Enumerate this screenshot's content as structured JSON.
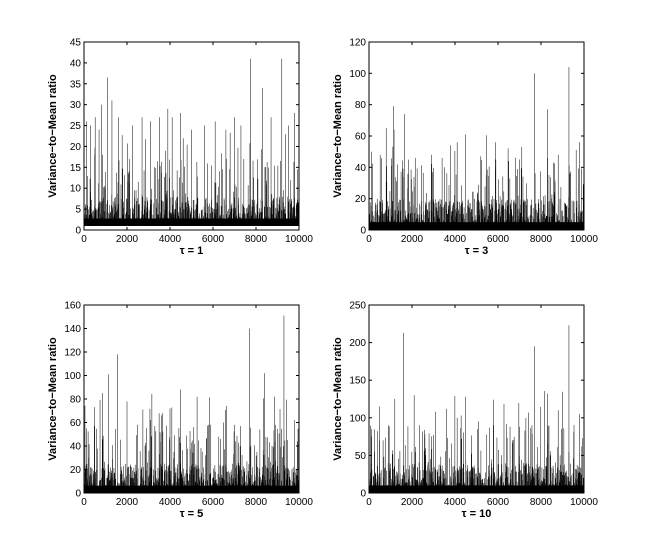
{
  "chart_data": [
    {
      "type": "line",
      "title": "",
      "xlabel": "τ = 1",
      "ylabel": "Variance−to−Mean ratio",
      "xlim": [
        0,
        10000
      ],
      "ylim": [
        0,
        45
      ],
      "xticks": [
        0,
        2000,
        4000,
        6000,
        8000,
        10000
      ],
      "yticks": [
        0,
        5,
        10,
        15,
        20,
        25,
        30,
        35,
        40,
        45
      ],
      "baseline": 1,
      "typical_range": [
        1,
        8
      ],
      "peaks": [
        [
          120,
          26
        ],
        [
          310,
          25
        ],
        [
          520,
          27
        ],
        [
          820,
          30
        ],
        [
          1100,
          36.5
        ],
        [
          1300,
          31
        ],
        [
          1600,
          27
        ],
        [
          2250,
          25
        ],
        [
          2700,
          27
        ],
        [
          3100,
          26
        ],
        [
          3500,
          27
        ],
        [
          3900,
          29
        ],
        [
          4100,
          27
        ],
        [
          4500,
          28
        ],
        [
          5000,
          24
        ],
        [
          5600,
          25
        ],
        [
          6100,
          26
        ],
        [
          6600,
          24
        ],
        [
          7000,
          27
        ],
        [
          7300,
          25
        ],
        [
          7750,
          41
        ],
        [
          8300,
          34
        ],
        [
          8700,
          27
        ],
        [
          9200,
          41
        ],
        [
          9500,
          25
        ],
        [
          9800,
          28
        ]
      ],
      "series": [
        {
          "values": []
        }
      ]
    },
    {
      "type": "line",
      "title": "",
      "xlabel": "τ = 3",
      "ylabel": "Variance−to−Mean ratio",
      "xlim": [
        0,
        10000
      ],
      "ylim": [
        0,
        120
      ],
      "xticks": [
        0,
        2000,
        4000,
        6000,
        8000,
        10000
      ],
      "yticks": [
        0,
        20,
        40,
        60,
        80,
        100,
        120
      ],
      "baseline": 0,
      "typical_range": [
        0,
        20
      ],
      "peaks": [
        [
          110,
          50
        ],
        [
          520,
          48
        ],
        [
          800,
          65
        ],
        [
          1150,
          79
        ],
        [
          1650,
          74
        ],
        [
          2150,
          46
        ],
        [
          2900,
          48
        ],
        [
          3400,
          46
        ],
        [
          3800,
          54
        ],
        [
          4100,
          56
        ],
        [
          4500,
          61
        ],
        [
          5200,
          47
        ],
        [
          5900,
          45
        ],
        [
          6500,
          44
        ],
        [
          7000,
          45
        ],
        [
          7700,
          100
        ],
        [
          8300,
          77
        ],
        [
          8800,
          48
        ],
        [
          9300,
          104
        ],
        [
          9800,
          56
        ]
      ],
      "series": [
        {
          "values": []
        }
      ]
    },
    {
      "type": "line",
      "title": "",
      "xlabel": "τ = 5",
      "ylabel": "Variance−to−Mean ratio",
      "xlim": [
        0,
        10000
      ],
      "ylim": [
        0,
        160
      ],
      "xticks": [
        0,
        2000,
        4000,
        6000,
        8000,
        10000
      ],
      "yticks": [
        0,
        20,
        40,
        60,
        80,
        100,
        120,
        140,
        160
      ],
      "baseline": 0,
      "typical_range": [
        0,
        25
      ],
      "peaks": [
        [
          120,
          55
        ],
        [
          500,
          73
        ],
        [
          850,
          85
        ],
        [
          1150,
          101
        ],
        [
          1550,
          118
        ],
        [
          2000,
          78
        ],
        [
          2500,
          58
        ],
        [
          3100,
          62
        ],
        [
          3600,
          66
        ],
        [
          4000,
          72
        ],
        [
          4500,
          88
        ],
        [
          5100,
          56
        ],
        [
          5800,
          58
        ],
        [
          6500,
          60
        ],
        [
          7000,
          58
        ],
        [
          7700,
          140
        ],
        [
          8400,
          102
        ],
        [
          8900,
          58
        ],
        [
          9300,
          151
        ],
        [
          9800,
          62
        ]
      ],
      "series": [
        {
          "values": []
        }
      ]
    },
    {
      "type": "line",
      "title": "",
      "xlabel": "τ = 10",
      "ylabel": "Variance−to−Mean ratio",
      "xlim": [
        0,
        10000
      ],
      "ylim": [
        0,
        250
      ],
      "xticks": [
        0,
        2000,
        4000,
        6000,
        8000,
        10000
      ],
      "yticks": [
        0,
        50,
        100,
        150,
        200,
        250
      ],
      "baseline": 0,
      "typical_range": [
        0,
        40
      ],
      "peaks": [
        [
          120,
          75
        ],
        [
          500,
          115
        ],
        [
          900,
          90
        ],
        [
          1200,
          125
        ],
        [
          1600,
          213
        ],
        [
          2100,
          130
        ],
        [
          2600,
          78
        ],
        [
          3100,
          108
        ],
        [
          3600,
          112
        ],
        [
          4100,
          100
        ],
        [
          4500,
          128
        ],
        [
          5100,
          95
        ],
        [
          5800,
          90
        ],
        [
          6400,
          92
        ],
        [
          7000,
          88
        ],
        [
          7700,
          195
        ],
        [
          8300,
          132
        ],
        [
          8800,
          110
        ],
        [
          9300,
          223
        ],
        [
          9800,
          105
        ]
      ],
      "series": [
        {
          "values": []
        }
      ]
    }
  ]
}
